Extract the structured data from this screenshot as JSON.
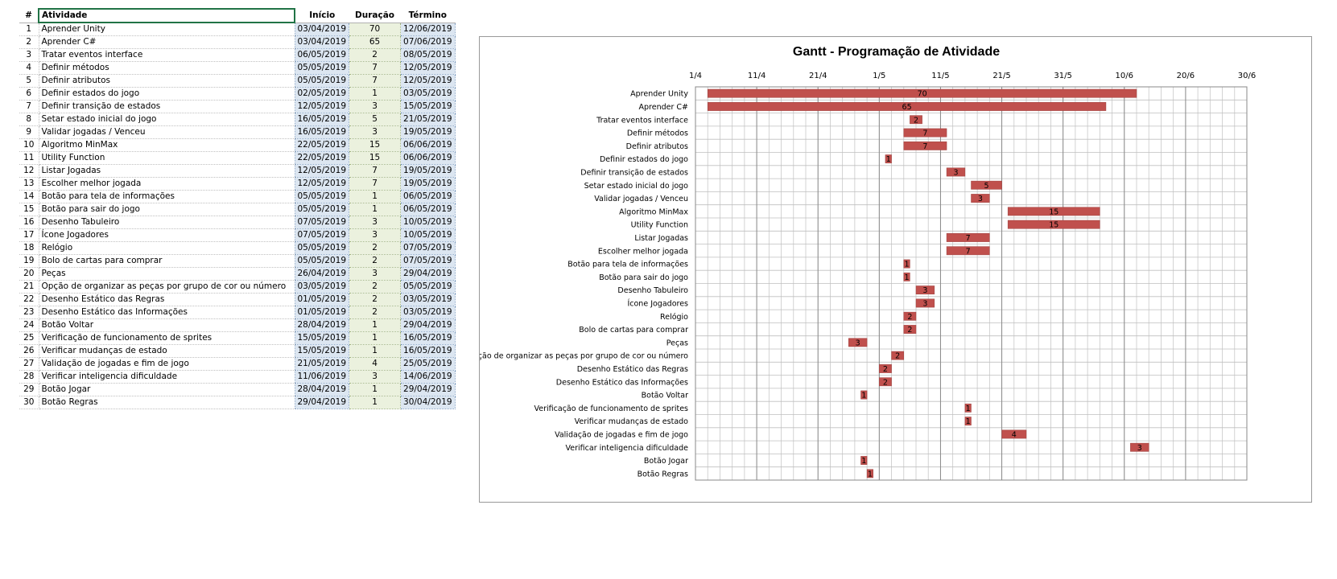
{
  "table": {
    "headers": {
      "num": "#",
      "activity": "Atividade",
      "start": "Início",
      "duration": "Duração",
      "end": "Término"
    },
    "rows": [
      {
        "num": "1",
        "activity": "Aprender Unity",
        "start": "03/04/2019",
        "duration": "70",
        "end": "12/06/2019"
      },
      {
        "num": "2",
        "activity": "Aprender C#",
        "start": "03/04/2019",
        "duration": "65",
        "end": "07/06/2019"
      },
      {
        "num": "3",
        "activity": "Tratar eventos interface",
        "start": "06/05/2019",
        "duration": "2",
        "end": "08/05/2019"
      },
      {
        "num": "4",
        "activity": "Definir métodos",
        "start": "05/05/2019",
        "duration": "7",
        "end": "12/05/2019"
      },
      {
        "num": "5",
        "activity": "Definir atributos",
        "start": "05/05/2019",
        "duration": "7",
        "end": "12/05/2019"
      },
      {
        "num": "6",
        "activity": "Definir estados do jogo",
        "start": "02/05/2019",
        "duration": "1",
        "end": "03/05/2019"
      },
      {
        "num": "7",
        "activity": "Definir transição de estados",
        "start": "12/05/2019",
        "duration": "3",
        "end": "15/05/2019"
      },
      {
        "num": "8",
        "activity": "Setar estado inicial do jogo",
        "start": "16/05/2019",
        "duration": "5",
        "end": "21/05/2019"
      },
      {
        "num": "9",
        "activity": "Validar jogadas / Venceu",
        "start": "16/05/2019",
        "duration": "3",
        "end": "19/05/2019"
      },
      {
        "num": "10",
        "activity": "Algoritmo MinMax",
        "start": "22/05/2019",
        "duration": "15",
        "end": "06/06/2019"
      },
      {
        "num": "11",
        "activity": "Utility Function",
        "start": "22/05/2019",
        "duration": "15",
        "end": "06/06/2019"
      },
      {
        "num": "12",
        "activity": "Listar Jogadas",
        "start": "12/05/2019",
        "duration": "7",
        "end": "19/05/2019"
      },
      {
        "num": "13",
        "activity": "Escolher melhor jogada",
        "start": "12/05/2019",
        "duration": "7",
        "end": "19/05/2019"
      },
      {
        "num": "14",
        "activity": "Botão para tela de informações",
        "start": "05/05/2019",
        "duration": "1",
        "end": "06/05/2019"
      },
      {
        "num": "15",
        "activity": "Botão para sair do jogo",
        "start": "05/05/2019",
        "duration": "1",
        "end": "06/05/2019"
      },
      {
        "num": "16",
        "activity": "Desenho Tabuleiro",
        "start": "07/05/2019",
        "duration": "3",
        "end": "10/05/2019"
      },
      {
        "num": "17",
        "activity": "Ícone Jogadores",
        "start": "07/05/2019",
        "duration": "3",
        "end": "10/05/2019"
      },
      {
        "num": "18",
        "activity": "Relógio",
        "start": "05/05/2019",
        "duration": "2",
        "end": "07/05/2019"
      },
      {
        "num": "19",
        "activity": "Bolo de cartas para comprar",
        "start": "05/05/2019",
        "duration": "2",
        "end": "07/05/2019"
      },
      {
        "num": "20",
        "activity": "Peças",
        "start": "26/04/2019",
        "duration": "3",
        "end": "29/04/2019"
      },
      {
        "num": "21",
        "activity": "Opção de organizar as peças por grupo de cor ou número",
        "start": "03/05/2019",
        "duration": "2",
        "end": "05/05/2019"
      },
      {
        "num": "22",
        "activity": "Desenho Estático das Regras",
        "start": "01/05/2019",
        "duration": "2",
        "end": "03/05/2019"
      },
      {
        "num": "23",
        "activity": "Desenho Estático das Informações",
        "start": "01/05/2019",
        "duration": "2",
        "end": "03/05/2019"
      },
      {
        "num": "24",
        "activity": "Botão Voltar",
        "start": "28/04/2019",
        "duration": "1",
        "end": "29/04/2019"
      },
      {
        "num": "25",
        "activity": "Verificação de funcionamento de sprites",
        "start": "15/05/2019",
        "duration": "1",
        "end": "16/05/2019"
      },
      {
        "num": "26",
        "activity": "Verificar mudanças de estado",
        "start": "15/05/2019",
        "duration": "1",
        "end": "16/05/2019"
      },
      {
        "num": "27",
        "activity": "Validação de jogadas e fim de jogo",
        "start": "21/05/2019",
        "duration": "4",
        "end": "25/05/2019"
      },
      {
        "num": "28",
        "activity": "Verificar inteligencia dificuldade",
        "start": "11/06/2019",
        "duration": "3",
        "end": "14/06/2019"
      },
      {
        "num": "29",
        "activity": "Botão Jogar",
        "start": "28/04/2019",
        "duration": "1",
        "end": "29/04/2019"
      },
      {
        "num": "30",
        "activity": "Botão Regras",
        "start": "29/04/2019",
        "duration": "1",
        "end": "30/04/2019"
      }
    ]
  },
  "chart_data": {
    "type": "bar",
    "title": "Gantt - Programação de Atividade",
    "orientation": "horizontal-gantt",
    "x_ticks": [
      "1/4",
      "11/4",
      "21/4",
      "1/5",
      "11/5",
      "21/5",
      "31/5",
      "10/6",
      "20/6",
      "30/6"
    ],
    "x_range": [
      "2019-04-01",
      "2019-06-30"
    ],
    "minor_grid_days": 2,
    "grid": true,
    "bar_color": "#c0504d",
    "categories": [
      "Aprender Unity",
      "Aprender C#",
      "Tratar eventos interface",
      "Definir métodos",
      "Definir atributos",
      "Definir estados do jogo",
      "Definir transição de estados",
      "Setar estado inicial do jogo",
      "Validar jogadas / Venceu",
      "Algoritmo MinMax",
      "Utility Function",
      "Listar Jogadas",
      "Escolher melhor jogada",
      "Botão para tela de informações",
      "Botão para sair do jogo",
      "Desenho Tabuleiro",
      "Ícone Jogadores",
      "Relógio",
      "Bolo de cartas para comprar",
      "Peças",
      "Opção de organizar as peças por grupo de cor ou número",
      "Desenho Estático das Regras",
      "Desenho Estático das Informações",
      "Botão Voltar",
      "Verificação de funcionamento de sprites",
      "Verificar mudanças de estado",
      "Validação de jogadas e fim de jogo",
      "Verificar inteligencia dificuldade",
      "Botão Jogar",
      "Botão Regras"
    ],
    "starts": [
      "2019-04-03",
      "2019-04-03",
      "2019-05-06",
      "2019-05-05",
      "2019-05-05",
      "2019-05-02",
      "2019-05-12",
      "2019-05-16",
      "2019-05-16",
      "2019-05-22",
      "2019-05-22",
      "2019-05-12",
      "2019-05-12",
      "2019-05-05",
      "2019-05-05",
      "2019-05-07",
      "2019-05-07",
      "2019-05-05",
      "2019-05-05",
      "2019-04-26",
      "2019-05-03",
      "2019-05-01",
      "2019-05-01",
      "2019-04-28",
      "2019-05-15",
      "2019-05-15",
      "2019-05-21",
      "2019-06-11",
      "2019-04-28",
      "2019-04-29"
    ],
    "durations": [
      70,
      65,
      2,
      7,
      7,
      1,
      3,
      5,
      3,
      15,
      15,
      7,
      7,
      1,
      1,
      3,
      3,
      2,
      2,
      3,
      2,
      2,
      2,
      1,
      1,
      1,
      4,
      3,
      1,
      1
    ]
  }
}
